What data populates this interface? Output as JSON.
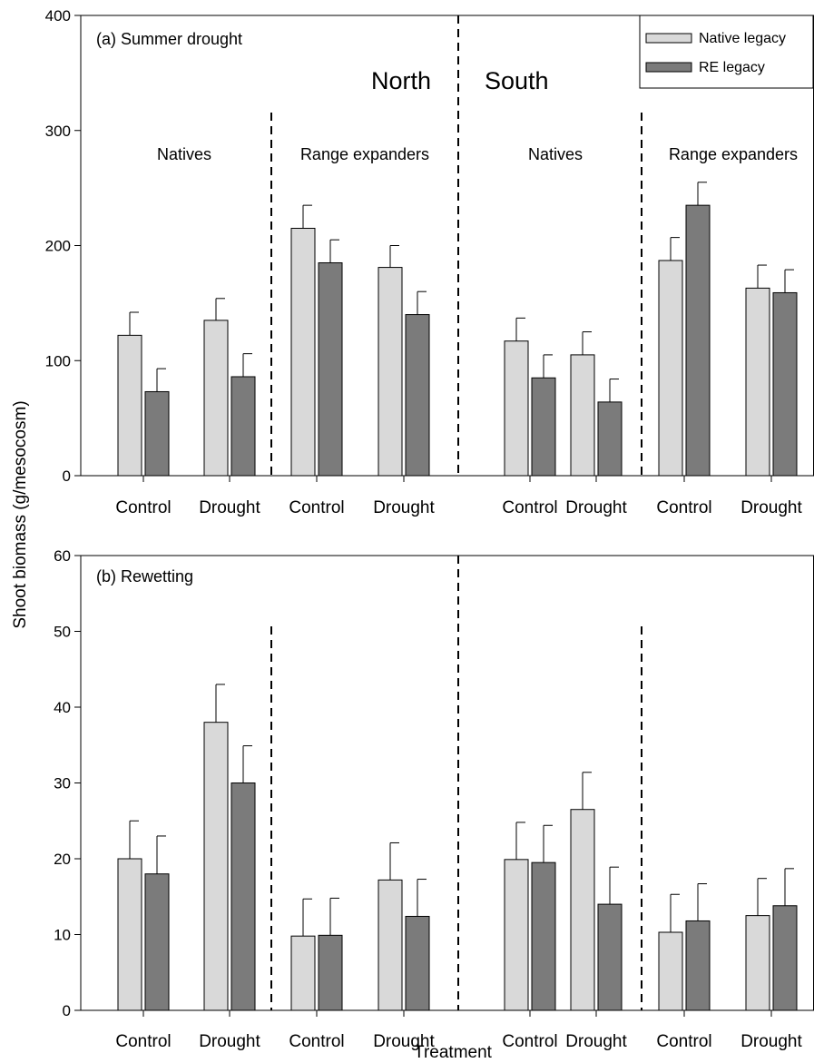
{
  "figure": {
    "ylabel": "Shoot biomass (g/mesocosm)",
    "xlabel": "Treatment"
  },
  "legend": {
    "items": [
      {
        "label": "Native legacy",
        "color": "#d9d9d9"
      },
      {
        "label": "RE legacy",
        "color": "#7b7b7b"
      }
    ]
  },
  "chart_data": [
    {
      "type": "bar",
      "title": "(a) Summer drought",
      "regions": [
        "North",
        "South"
      ],
      "groups": [
        "Natives",
        "Range expanders",
        "Natives",
        "Range expanders"
      ],
      "categories": [
        "Control",
        "Drought",
        "Control",
        "Drought",
        "Control",
        "Drought",
        "Control",
        "Drought"
      ],
      "series": [
        {
          "name": "Native legacy",
          "values": [
            122,
            135,
            215,
            181,
            117,
            105,
            187,
            163
          ],
          "errors": [
            20,
            19,
            20,
            19,
            20,
            20,
            20,
            20
          ]
        },
        {
          "name": "RE legacy",
          "values": [
            73,
            86,
            185,
            140,
            85,
            64,
            235,
            159
          ],
          "errors": [
            20,
            20,
            20,
            20,
            20,
            20,
            20,
            20
          ]
        }
      ],
      "ylim": [
        0,
        400
      ],
      "yticks": [
        0,
        100,
        200,
        300,
        400
      ],
      "grid": false,
      "legend_position": "top-right"
    },
    {
      "type": "bar",
      "title": "(b) Rewetting",
      "categories": [
        "Control",
        "Drought",
        "Control",
        "Drought",
        "Control",
        "Drought",
        "Control",
        "Drought"
      ],
      "series": [
        {
          "name": "Native legacy",
          "values": [
            20,
            38,
            9.8,
            17.2,
            19.9,
            26.5,
            10.3,
            12.5
          ],
          "errors": [
            5,
            5,
            4.9,
            4.9,
            4.9,
            4.9,
            5,
            4.9
          ]
        },
        {
          "name": "RE legacy",
          "values": [
            18,
            30,
            9.9,
            12.4,
            19.5,
            14,
            11.8,
            13.8
          ],
          "errors": [
            5,
            4.9,
            4.9,
            4.9,
            4.9,
            4.9,
            4.9,
            4.9
          ]
        }
      ],
      "ylim": [
        0,
        60
      ],
      "yticks": [
        0,
        10,
        20,
        30,
        40,
        50,
        60
      ],
      "grid": false
    }
  ]
}
